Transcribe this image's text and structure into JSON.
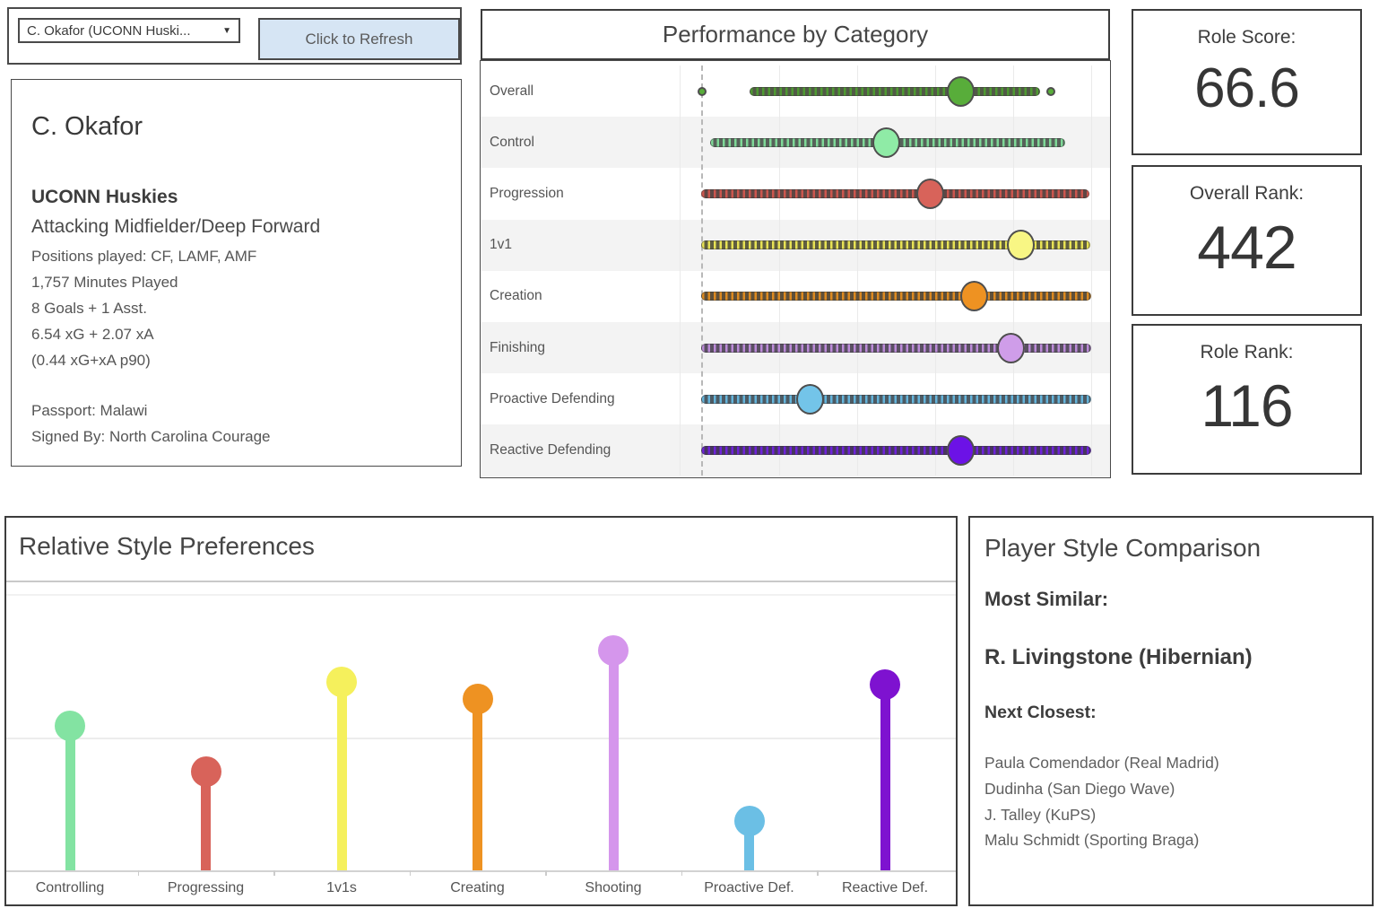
{
  "controls": {
    "player_select_value": "C. Okafor (UCONN Huski...",
    "caret": "▼",
    "refresh_label": "Click to Refresh"
  },
  "player_card": {
    "name": "C. Okafor",
    "team": "UCONN Huskies",
    "role": "Attacking Midfielder/Deep Forward",
    "details": [
      "Positions played: CF, LAMF, AMF",
      "1,757 Minutes Played",
      "8 Goals + 1 Asst.",
      "6.54 xG + 2.07 xA",
      "(0.44 xG+xA p90)"
    ],
    "passport": "Passport: Malawi",
    "signed_by": "Signed By: North Carolina Courage"
  },
  "performance": {
    "title": "Performance by Category",
    "rows": [
      {
        "label": "Overall",
        "value_pct": 66.5,
        "strip_start_pct": 12.5,
        "strip_end_pct": 87,
        "extra_dots_pct": [
          0.2,
          89.7
        ],
        "color": "#58ad3a",
        "strip_dot": "#4e9a32",
        "strip_bg": "#515a46"
      },
      {
        "label": "Control",
        "value_pct": 47.5,
        "strip_start_pct": 2.3,
        "strip_end_pct": 93.3,
        "extra_dots_pct": [],
        "color": "#8feba6",
        "strip_dot": "#7ed897",
        "strip_bg": "#57625a"
      },
      {
        "label": "Progression",
        "value_pct": 58.8,
        "strip_start_pct": 0,
        "strip_end_pct": 99.5,
        "extra_dots_pct": [],
        "color": "#d8635a",
        "strip_dot": "#cc564e",
        "strip_bg": "#5f4744"
      },
      {
        "label": "1v1",
        "value_pct": 82.0,
        "strip_start_pct": 0,
        "strip_end_pct": 99.8,
        "extra_dots_pct": [],
        "color": "#f8f684",
        "strip_dot": "#e7e254",
        "strip_bg": "#605e40"
      },
      {
        "label": "Creation",
        "value_pct": 70.0,
        "strip_start_pct": 0,
        "strip_end_pct": 100,
        "extra_dots_pct": [],
        "color": "#ee9222",
        "strip_dot": "#dd8a20",
        "strip_bg": "#5f503a"
      },
      {
        "label": "Finishing",
        "value_pct": 79.5,
        "strip_start_pct": 0,
        "strip_end_pct": 100,
        "extra_dots_pct": [],
        "color": "#cf9de9",
        "strip_dot": "#bc8bd9",
        "strip_bg": "#5a5062"
      },
      {
        "label": "Proactive Defending",
        "value_pct": 28.0,
        "strip_start_pct": 0,
        "strip_end_pct": 100,
        "extra_dots_pct": [],
        "color": "#73c4e9",
        "strip_dot": "#65b5dc",
        "strip_bg": "#4d5b64"
      },
      {
        "label": "Reactive Defending",
        "value_pct": 66.5,
        "strip_start_pct": 0,
        "strip_end_pct": 100,
        "extra_dots_pct": [],
        "color": "#6c12e6",
        "strip_dot": "#6e22da",
        "strip_bg": "#473560"
      }
    ]
  },
  "score_cards": [
    {
      "label": "Role Score:",
      "value": "66.6"
    },
    {
      "label": "Overall Rank:",
      "value": "442"
    },
    {
      "label": "Role Rank:",
      "value": "116"
    }
  ],
  "style_prefs": {
    "title": "Relative Style Preferences",
    "categories": [
      {
        "label": "Controlling",
        "value": 50,
        "color": "#83e3a2"
      },
      {
        "label": "Progressing",
        "value": 34,
        "color": "#d8635a"
      },
      {
        "label": "1v1s",
        "value": 65,
        "color": "#f5f05c"
      },
      {
        "label": "Creating",
        "value": 59,
        "color": "#ee9222"
      },
      {
        "label": "Shooting",
        "value": 76,
        "color": "#d596ec"
      },
      {
        "label": "Proactive Def.",
        "value": 17,
        "color": "#6bbfe5"
      },
      {
        "label": "Reactive Def.",
        "value": 64,
        "color": "#7e12d0"
      }
    ]
  },
  "comparison": {
    "title": "Player Style Comparison",
    "most_similar_label": "Most Similar:",
    "most_similar": "R. Livingstone (Hibernian)",
    "next_closest_label": "Next Closest:",
    "next_closest": [
      "Paula Comendador (Real Madrid)",
      "Dudinha (San Diego Wave)",
      "J. Talley (KuPS)",
      "Malu Schmidt (Sporting Braga)"
    ]
  },
  "chart_data": [
    {
      "type": "scatter",
      "title": "Performance by Category",
      "note": "Dot-strip percentile distributions per category; large dot = player percentile",
      "categories": [
        "Overall",
        "Control",
        "Progression",
        "1v1",
        "Creation",
        "Finishing",
        "Proactive Defending",
        "Reactive Defending"
      ],
      "values": [
        66.5,
        47.5,
        58.8,
        82.0,
        70.0,
        79.5,
        28.0,
        66.5
      ],
      "xlim": [
        0,
        100
      ],
      "grid": true,
      "reference_line_x": 0
    },
    {
      "type": "bar",
      "title": "Relative Style Preferences",
      "note": "Lollipop chart, approximate relative heights 0-100",
      "categories": [
        "Controlling",
        "Progressing",
        "1v1s",
        "Creating",
        "Shooting",
        "Proactive Def.",
        "Reactive Def."
      ],
      "values": [
        50,
        34,
        65,
        59,
        76,
        17,
        64
      ],
      "xlabel": "",
      "ylabel": "",
      "ylim": [
        0,
        100
      ]
    }
  ]
}
